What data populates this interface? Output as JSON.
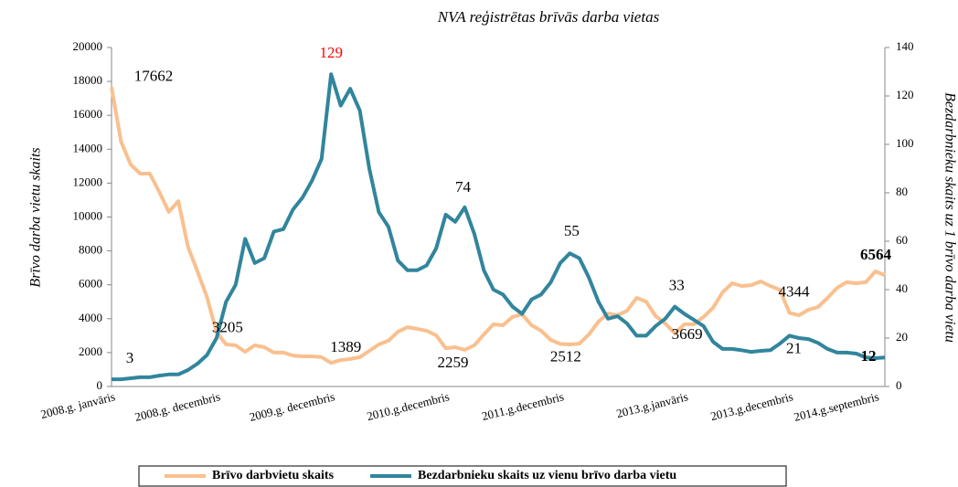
{
  "chart_data": {
    "type": "line",
    "title": "NVA reģistrētas brīvās darba vietas",
    "ylabel": "Brīvo darba vietu skaits",
    "y2label": "Bezdarbnieku skaits uz 1 brīvo darba vietu",
    "categories": [
      "2008.g. janvāris",
      null,
      null,
      null,
      null,
      null,
      null,
      null,
      null,
      null,
      null,
      "2008.g. decembris",
      null,
      null,
      null,
      null,
      null,
      null,
      null,
      null,
      null,
      null,
      null,
      "2009.g. decembris",
      null,
      null,
      null,
      null,
      null,
      null,
      null,
      null,
      null,
      null,
      null,
      "2010.g.decembris",
      null,
      null,
      null,
      null,
      null,
      null,
      null,
      null,
      null,
      null,
      null,
      "2011.g.decembris",
      null,
      null,
      null,
      null,
      null,
      null,
      null,
      null,
      null,
      null,
      null,
      null,
      "2013.g.janvāris",
      null,
      null,
      null,
      null,
      null,
      null,
      null,
      null,
      null,
      null,
      "2013.g.decembris",
      null,
      null,
      null,
      null,
      null,
      null,
      null,
      null,
      "2014.g.septembris",
      null
    ],
    "series": [
      {
        "name": "Brīvo darbvietu skaits",
        "color": "#f9c08f",
        "axis": "y",
        "values": [
          17662,
          14450,
          13100,
          12560,
          12560,
          11480,
          10300,
          10940,
          8250,
          6790,
          5280,
          3205,
          2480,
          2430,
          2050,
          2430,
          2320,
          2000,
          2000,
          1830,
          1780,
          1780,
          1730,
          1389,
          1560,
          1620,
          1730,
          2100,
          2480,
          2700,
          3230,
          3500,
          3400,
          3290,
          3020,
          2259,
          2320,
          2160,
          2430,
          3070,
          3670,
          3610,
          4100,
          4260,
          3610,
          3290,
          2750,
          2512,
          2480,
          2530,
          3070,
          3830,
          4310,
          4200,
          4470,
          5230,
          5010,
          4150,
          3720,
          3130,
          3669,
          3670,
          4100,
          4640,
          5550,
          6090,
          5930,
          5980,
          6200,
          5930,
          5710,
          4344,
          4200,
          4530,
          4690,
          5230,
          5820,
          6150,
          6090,
          6150,
          6790,
          6564
        ]
      },
      {
        "name": "Bezdarbnieku skaits uz vienu brīvo darba vietu",
        "color": "#31859c",
        "axis": "y2",
        "values": [
          3,
          3,
          3.4,
          3.8,
          3.8,
          4.5,
          5,
          5,
          6.8,
          9.4,
          13,
          20,
          35,
          42,
          61,
          51,
          53,
          64,
          65,
          73,
          78,
          85,
          94,
          129,
          116,
          123,
          114,
          90,
          72,
          66,
          52,
          48,
          48,
          50,
          57,
          71,
          68,
          74,
          63,
          48,
          40,
          38,
          33,
          30,
          36,
          38,
          43,
          51,
          55,
          53,
          45,
          35,
          28,
          29,
          26,
          21,
          21,
          25,
          28,
          33,
          30,
          27.5,
          25,
          18.5,
          15.5,
          15.5,
          15,
          14.3,
          14.7,
          15,
          17.7,
          21,
          20,
          19.6,
          18,
          15.5,
          14,
          14,
          13.6,
          12,
          11.7,
          12
        ]
      }
    ],
    "ylim": [
      0,
      20000
    ],
    "yticks": [
      0,
      2000,
      4000,
      6000,
      8000,
      10000,
      12000,
      14000,
      16000,
      18000,
      20000
    ],
    "y2lim": [
      0,
      140
    ],
    "y2ticks": [
      0,
      20,
      40,
      60,
      80,
      100,
      120,
      140
    ],
    "legend": "bottom"
  }
}
